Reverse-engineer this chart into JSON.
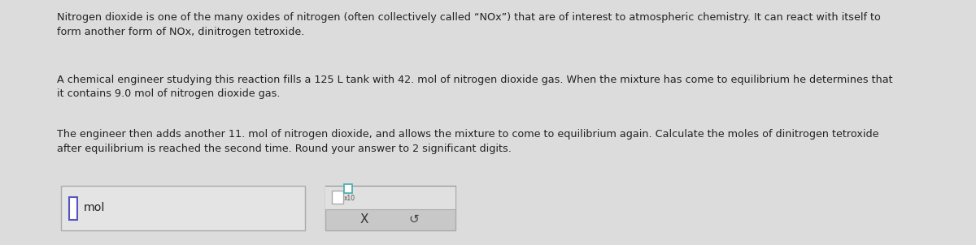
{
  "background_color": "#dcdcdc",
  "text_color": "#222222",
  "paragraph1": "Nitrogen dioxide is one of the many oxides of nitrogen (often collectively called “NOx”) that are of interest to atmospheric chemistry. It can react with itself to\nform another form of NOx, dinitrogen tetroxide.",
  "paragraph2": "A chemical engineer studying this reaction fills a 125 L tank with 42. mol of nitrogen dioxide gas. When the mixture has come to equilibrium he determines that\nit contains 9.0 mol of nitrogen dioxide gas.",
  "paragraph3": "The engineer then adds another 11. mol of nitrogen dioxide, and allows the mixture to come to equilibrium again. Calculate the moles of dinitrogen tetroxide\nafter equilibrium is reached the second time. Round your answer to 2 significant digits.",
  "input_box_label": "mol",
  "x_symbol": "X",
  "undo_symbol": "↺",
  "font_size_body": 9.2,
  "cursor_box_color": "#5555bb",
  "teal_box_color": "#44aaaa",
  "panel_bg_top": "#e0e0e0",
  "panel_bg_bottom": "#c8c8c8",
  "answer_box_bg": "#e4e4e4",
  "answer_box_border": "#aaaaaa"
}
